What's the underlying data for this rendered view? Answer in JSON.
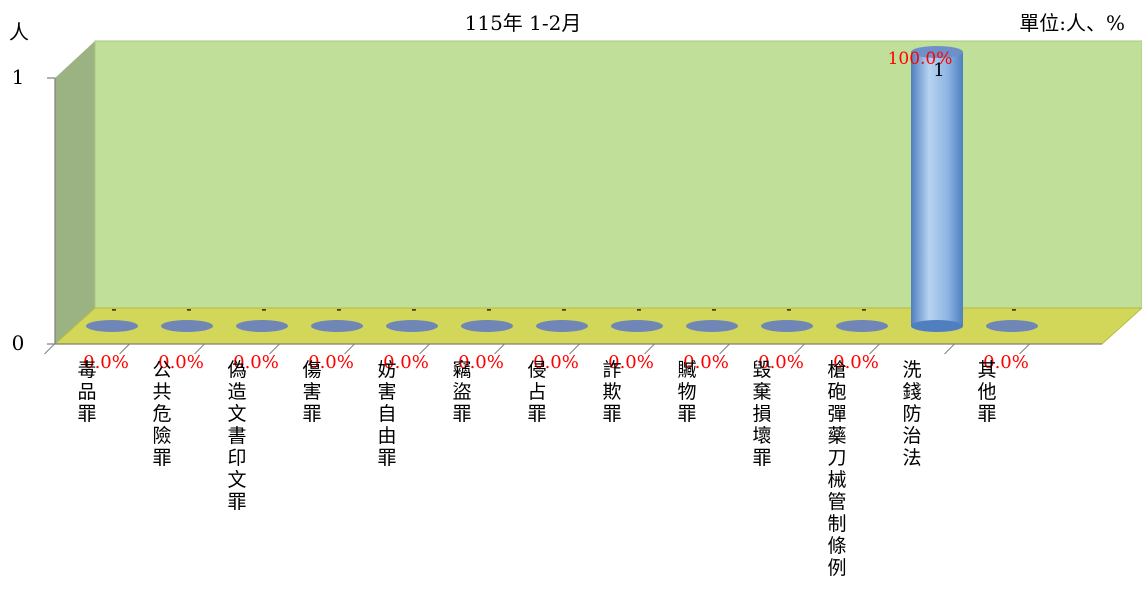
{
  "chart_data": {
    "type": "bar",
    "title": "115年 1-2月",
    "unit_label": "單位:人、%",
    "ylabel": "人",
    "ylim": [
      0,
      1
    ],
    "yticks": [
      "0",
      "1"
    ],
    "grid": false,
    "categories": [
      "毒品罪",
      "公共危險罪",
      "偽造文書印文罪",
      "傷害罪",
      "妨害自由罪",
      "竊盜罪",
      "侵占罪",
      "詐欺罪",
      "贓物罪",
      "毀棄損壞罪",
      "槍砲彈藥刀械管制條例",
      "洗錢防治法",
      "其他罪"
    ],
    "values": [
      0,
      0,
      0,
      0,
      0,
      0,
      0,
      0,
      0,
      0,
      0,
      1,
      0
    ],
    "value_labels": [
      "-",
      "-",
      "-",
      "-",
      "-",
      "-",
      "-",
      "-",
      "-",
      "-",
      "-",
      "1",
      "-"
    ],
    "percent_labels": [
      "0.0%",
      "0.0%",
      "0.0%",
      "0.0%",
      "0.0%",
      "0.0%",
      "0.0%",
      "0.0%",
      "0.0%",
      "0.0%",
      "0.0%",
      "100.0%",
      "0.0%"
    ],
    "colors": {
      "back_wall": "#c0e09a",
      "back_wall_stroke": "#a6c97c",
      "side_wall": "#9bb383",
      "floor": "#d2d75a",
      "floor_stroke": "#b7bb3f",
      "bar_light": "#b7d3f1",
      "bar_mid": "#8fb5e3",
      "bar_dark": "#4f7fbf",
      "bar_top": "#6f8fc8",
      "ellipse_empty": "#6f86b6",
      "percent_text": "#ff0000",
      "text": "#000000",
      "axis": "#7f7f7f"
    }
  }
}
